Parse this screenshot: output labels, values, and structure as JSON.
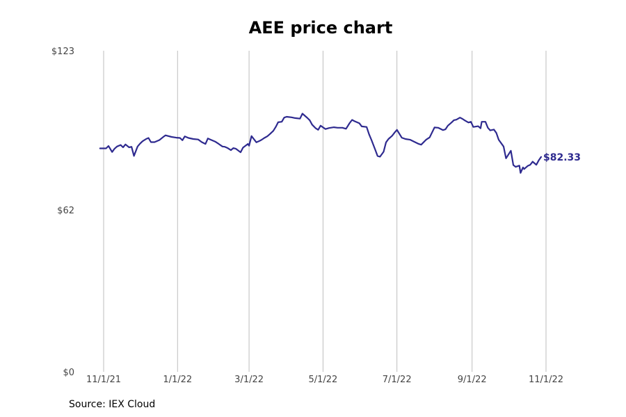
{
  "source": "Source: IEX Cloud",
  "chart_data": {
    "type": "line",
    "title": "AEE price chart",
    "xlabel": "",
    "ylabel": "",
    "y_ticks": [
      {
        "value": 0,
        "label": "$0"
      },
      {
        "value": 62,
        "label": "$62"
      },
      {
        "value": 123,
        "label": "$123"
      }
    ],
    "ylim": [
      0,
      123
    ],
    "x_ticks": [
      {
        "date": "2021-11-01",
        "label": "11/1/21"
      },
      {
        "date": "2022-01-01",
        "label": "1/1/22"
      },
      {
        "date": "2022-03-01",
        "label": "3/1/22"
      },
      {
        "date": "2022-05-01",
        "label": "5/1/22"
      },
      {
        "date": "2022-07-01",
        "label": "7/1/22"
      },
      {
        "date": "2022-09-01",
        "label": "9/1/22"
      },
      {
        "date": "2022-11-01",
        "label": "11/1/22"
      }
    ],
    "xlim": [
      "2021-10-29",
      "2022-11-01"
    ],
    "grid": "vertical",
    "line_color": "#2e2a8f",
    "last_value_label": "$82.33",
    "series": [
      {
        "points": [
          [
            "2021-10-29",
            85.6
          ],
          [
            "2021-11-01",
            85.6
          ],
          [
            "2021-11-03",
            85.6
          ],
          [
            "2021-11-05",
            86.5
          ],
          [
            "2021-11-08",
            84.2
          ],
          [
            "2021-11-10",
            85.5
          ],
          [
            "2021-11-12",
            86.3
          ],
          [
            "2021-11-15",
            86.9
          ],
          [
            "2021-11-17",
            86.0
          ],
          [
            "2021-11-19",
            87.1
          ],
          [
            "2021-11-22",
            86.0
          ],
          [
            "2021-11-24",
            86.2
          ],
          [
            "2021-11-26",
            82.7
          ],
          [
            "2021-11-29",
            86.3
          ],
          [
            "2021-12-01",
            87.4
          ],
          [
            "2021-12-03",
            88.3
          ],
          [
            "2021-12-06",
            89.2
          ],
          [
            "2021-12-08",
            89.6
          ],
          [
            "2021-12-10",
            88.0
          ],
          [
            "2021-12-13",
            88.0
          ],
          [
            "2021-12-15",
            88.4
          ],
          [
            "2021-12-17",
            88.8
          ],
          [
            "2021-12-20",
            89.9
          ],
          [
            "2021-12-22",
            90.6
          ],
          [
            "2021-12-27",
            90.0
          ],
          [
            "2021-12-31",
            89.7
          ],
          [
            "2022-01-03",
            89.6
          ],
          [
            "2022-01-05",
            88.7
          ],
          [
            "2022-01-07",
            90.2
          ],
          [
            "2022-01-10",
            89.6
          ],
          [
            "2022-01-14",
            89.2
          ],
          [
            "2022-01-18",
            89.0
          ],
          [
            "2022-01-21",
            88.0
          ],
          [
            "2022-01-24",
            87.3
          ],
          [
            "2022-01-26",
            89.4
          ],
          [
            "2022-01-28",
            89.0
          ],
          [
            "2022-02-01",
            88.2
          ],
          [
            "2022-02-04",
            87.3
          ],
          [
            "2022-02-07",
            86.3
          ],
          [
            "2022-02-09",
            86.2
          ],
          [
            "2022-02-11",
            85.8
          ],
          [
            "2022-02-14",
            84.9
          ],
          [
            "2022-02-16",
            85.7
          ],
          [
            "2022-02-18",
            85.5
          ],
          [
            "2022-02-22",
            84.1
          ],
          [
            "2022-02-24",
            85.9
          ],
          [
            "2022-02-28",
            87.3
          ],
          [
            "2022-03-01",
            86.6
          ],
          [
            "2022-03-03",
            90.3
          ],
          [
            "2022-03-07",
            87.9
          ],
          [
            "2022-03-09",
            88.3
          ],
          [
            "2022-03-11",
            88.8
          ],
          [
            "2022-03-14",
            89.7
          ],
          [
            "2022-03-16",
            90.2
          ],
          [
            "2022-03-18",
            91.0
          ],
          [
            "2022-03-21",
            92.3
          ],
          [
            "2022-03-23",
            93.8
          ],
          [
            "2022-03-25",
            95.6
          ],
          [
            "2022-03-28",
            95.8
          ],
          [
            "2022-03-30",
            97.4
          ],
          [
            "2022-04-01",
            97.7
          ],
          [
            "2022-04-05",
            97.5
          ],
          [
            "2022-04-08",
            97.2
          ],
          [
            "2022-04-12",
            97.0
          ],
          [
            "2022-04-14",
            98.9
          ],
          [
            "2022-04-18",
            97.3
          ],
          [
            "2022-04-20",
            96.4
          ],
          [
            "2022-04-22",
            94.7
          ],
          [
            "2022-04-25",
            93.3
          ],
          [
            "2022-04-27",
            92.7
          ],
          [
            "2022-04-29",
            94.3
          ],
          [
            "2022-05-03",
            93.0
          ],
          [
            "2022-05-06",
            93.4
          ],
          [
            "2022-05-10",
            93.7
          ],
          [
            "2022-05-13",
            93.5
          ],
          [
            "2022-05-17",
            93.5
          ],
          [
            "2022-05-20",
            93.1
          ],
          [
            "2022-05-23",
            95.3
          ],
          [
            "2022-05-25",
            96.5
          ],
          [
            "2022-05-27",
            96.0
          ],
          [
            "2022-05-31",
            95.2
          ],
          [
            "2022-06-02",
            94.0
          ],
          [
            "2022-06-06",
            93.8
          ],
          [
            "2022-06-08",
            91.0
          ],
          [
            "2022-06-10",
            88.8
          ],
          [
            "2022-06-13",
            85.2
          ],
          [
            "2022-06-15",
            82.7
          ],
          [
            "2022-06-17",
            82.4
          ],
          [
            "2022-06-20",
            84.3
          ],
          [
            "2022-06-22",
            87.9
          ],
          [
            "2022-06-24",
            89.2
          ],
          [
            "2022-06-27",
            90.4
          ],
          [
            "2022-06-29",
            91.6
          ],
          [
            "2022-07-01",
            92.7
          ],
          [
            "2022-07-05",
            89.7
          ],
          [
            "2022-07-08",
            89.2
          ],
          [
            "2022-07-12",
            88.9
          ],
          [
            "2022-07-15",
            88.2
          ],
          [
            "2022-07-19",
            87.3
          ],
          [
            "2022-07-21",
            87.0
          ],
          [
            "2022-07-25",
            88.9
          ],
          [
            "2022-07-28",
            89.8
          ],
          [
            "2022-08-01",
            93.6
          ],
          [
            "2022-08-04",
            93.5
          ],
          [
            "2022-08-08",
            92.6
          ],
          [
            "2022-08-10",
            92.9
          ],
          [
            "2022-08-12",
            94.3
          ],
          [
            "2022-08-15",
            95.5
          ],
          [
            "2022-08-17",
            96.4
          ],
          [
            "2022-08-19",
            96.6
          ],
          [
            "2022-08-22",
            97.4
          ],
          [
            "2022-08-24",
            96.9
          ],
          [
            "2022-08-26",
            96.3
          ],
          [
            "2022-08-29",
            95.5
          ],
          [
            "2022-08-31",
            95.8
          ],
          [
            "2022-09-02",
            93.8
          ],
          [
            "2022-09-06",
            94.1
          ],
          [
            "2022-09-08",
            93.3
          ],
          [
            "2022-09-09",
            95.8
          ],
          [
            "2022-09-12",
            95.8
          ],
          [
            "2022-09-14",
            93.5
          ],
          [
            "2022-09-16",
            92.5
          ],
          [
            "2022-09-19",
            92.8
          ],
          [
            "2022-09-21",
            91.5
          ],
          [
            "2022-09-23",
            88.9
          ],
          [
            "2022-09-27",
            86.3
          ],
          [
            "2022-09-29",
            81.8
          ],
          [
            "2022-10-03",
            84.7
          ],
          [
            "2022-10-05",
            79.2
          ],
          [
            "2022-10-07",
            78.5
          ],
          [
            "2022-10-10",
            79.0
          ],
          [
            "2022-10-11",
            76.2
          ],
          [
            "2022-10-13",
            78.3
          ],
          [
            "2022-10-14",
            77.7
          ],
          [
            "2022-10-17",
            78.9
          ],
          [
            "2022-10-19",
            79.3
          ],
          [
            "2022-10-21",
            80.5
          ],
          [
            "2022-10-24",
            79.3
          ],
          [
            "2022-10-26",
            81.0
          ],
          [
            "2022-10-28",
            82.33
          ]
        ]
      }
    ]
  }
}
